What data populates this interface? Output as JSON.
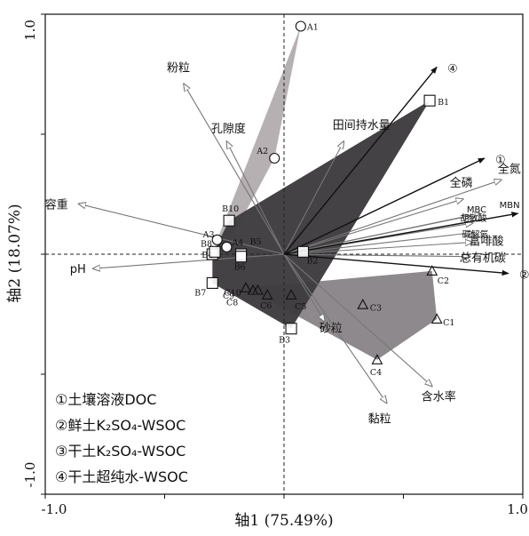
{
  "chart_data": {
    "type": "scatter",
    "subtype": "RDA biplot",
    "xlabel": "轴1 (75.49%)",
    "ylabel": "轴2 (18.07%)",
    "xlim": [
      -1.0,
      1.0
    ],
    "ylim": [
      -1.0,
      1.0
    ],
    "x_ticks": [
      "-1.0",
      "1.0"
    ],
    "y_ticks": [
      "1.0",
      "-1.0"
    ],
    "reference_lines": [
      0,
      0
    ],
    "response_vectors": [
      {
        "label": "①",
        "x": 0.84,
        "y": 0.4,
        "color": "#111111"
      },
      {
        "label": "②",
        "x": 0.94,
        "y": -0.08,
        "color": "#111111"
      },
      {
        "label": "③",
        "x": 0.98,
        "y": 0.17,
        "color": "#111111"
      },
      {
        "label": "④",
        "x": 0.64,
        "y": 0.78,
        "color": "#111111"
      }
    ],
    "explanatory_vectors": [
      {
        "label": "粉粒",
        "x": -0.42,
        "y": 0.71
      },
      {
        "label": "孔隙度",
        "x": -0.24,
        "y": 0.47
      },
      {
        "label": "田间持水量",
        "x": 0.25,
        "y": 0.47
      },
      {
        "label": "容重",
        "x": -0.86,
        "y": 0.21
      },
      {
        "label": "pH",
        "x": -0.8,
        "y": -0.06
      },
      {
        "label": "全氮",
        "x": 0.91,
        "y": 0.31
      },
      {
        "label": "全磷",
        "x": 0.75,
        "y": 0.23
      },
      {
        "label": "MBC",
        "x": 0.78,
        "y": 0.16
      },
      {
        "label": "MBN",
        "x": 0.82,
        "y": 0.17
      },
      {
        "label": "胡敏酸",
        "x": 0.79,
        "y": 0.13
      },
      {
        "label": "碱解氮",
        "x": 0.79,
        "y": 0.09
      },
      {
        "label": "富啡酸",
        "x": 0.79,
        "y": 0.05
      },
      {
        "label": "总有机碳",
        "x": 0.78,
        "y": -0.01
      },
      {
        "label": "砂粒",
        "x": 0.17,
        "y": -0.28
      },
      {
        "label": "含水率",
        "x": 0.62,
        "y": -0.55
      },
      {
        "label": "黏粒",
        "x": 0.43,
        "y": -0.62
      }
    ],
    "groups": [
      {
        "name": "A",
        "marker": "circle",
        "hull_color": "#b3acae",
        "points": [
          {
            "label": "A1",
            "x": 0.07,
            "y": 0.95
          },
          {
            "label": "A2",
            "x": -0.04,
            "y": 0.4
          },
          {
            "label": "A3",
            "x": -0.28,
            "y": 0.06
          },
          {
            "label": "A4",
            "x": -0.24,
            "y": 0.03
          }
        ]
      },
      {
        "name": "B",
        "marker": "square",
        "hull_color": "#3f3c3f",
        "points": [
          {
            "label": "B1",
            "x": 0.61,
            "y": 0.64
          },
          {
            "label": "B2",
            "x": 0.08,
            "y": 0.01
          },
          {
            "label": "B3",
            "x": 0.03,
            "y": -0.31
          },
          {
            "label": "B4",
            "x": -0.3,
            "y": 0.0
          },
          {
            "label": "B5",
            "x": -0.18,
            "y": 0.0
          },
          {
            "label": "B6",
            "x": -0.18,
            "y": -0.01
          },
          {
            "label": "B7",
            "x": -0.3,
            "y": -0.12
          },
          {
            "label": "B8",
            "x": -0.29,
            "y": 0.01
          },
          {
            "label": "B10",
            "x": -0.23,
            "y": 0.14
          }
        ]
      },
      {
        "name": "C",
        "marker": "triangle",
        "hull_color": "#8a8588",
        "points": [
          {
            "label": "C1",
            "x": 0.64,
            "y": -0.27
          },
          {
            "label": "C2",
            "x": 0.62,
            "y": -0.07
          },
          {
            "label": "C3",
            "x": 0.33,
            "y": -0.21
          },
          {
            "label": "C4",
            "x": 0.39,
            "y": -0.44
          },
          {
            "label": "C5",
            "x": 0.03,
            "y": -0.17
          },
          {
            "label": "C6",
            "x": -0.07,
            "y": -0.17
          },
          {
            "label": "C8",
            "x": -0.13,
            "y": -0.15
          },
          {
            "label": "C9",
            "x": -0.16,
            "y": -0.14
          },
          {
            "label": "C10",
            "x": -0.11,
            "y": -0.15
          }
        ]
      }
    ],
    "legend": {
      "placement": "bottom-left",
      "entries": [
        {
          "symbol": "①",
          "text": "土壤溶液DOC"
        },
        {
          "symbol": "②",
          "text": "鲜土K₂SO₄-WSOC"
        },
        {
          "symbol": "③",
          "text": "干土K₂SO₄-WSOC"
        },
        {
          "symbol": "④",
          "text": "干土超纯水-WSOC"
        }
      ]
    },
    "grid": false
  }
}
